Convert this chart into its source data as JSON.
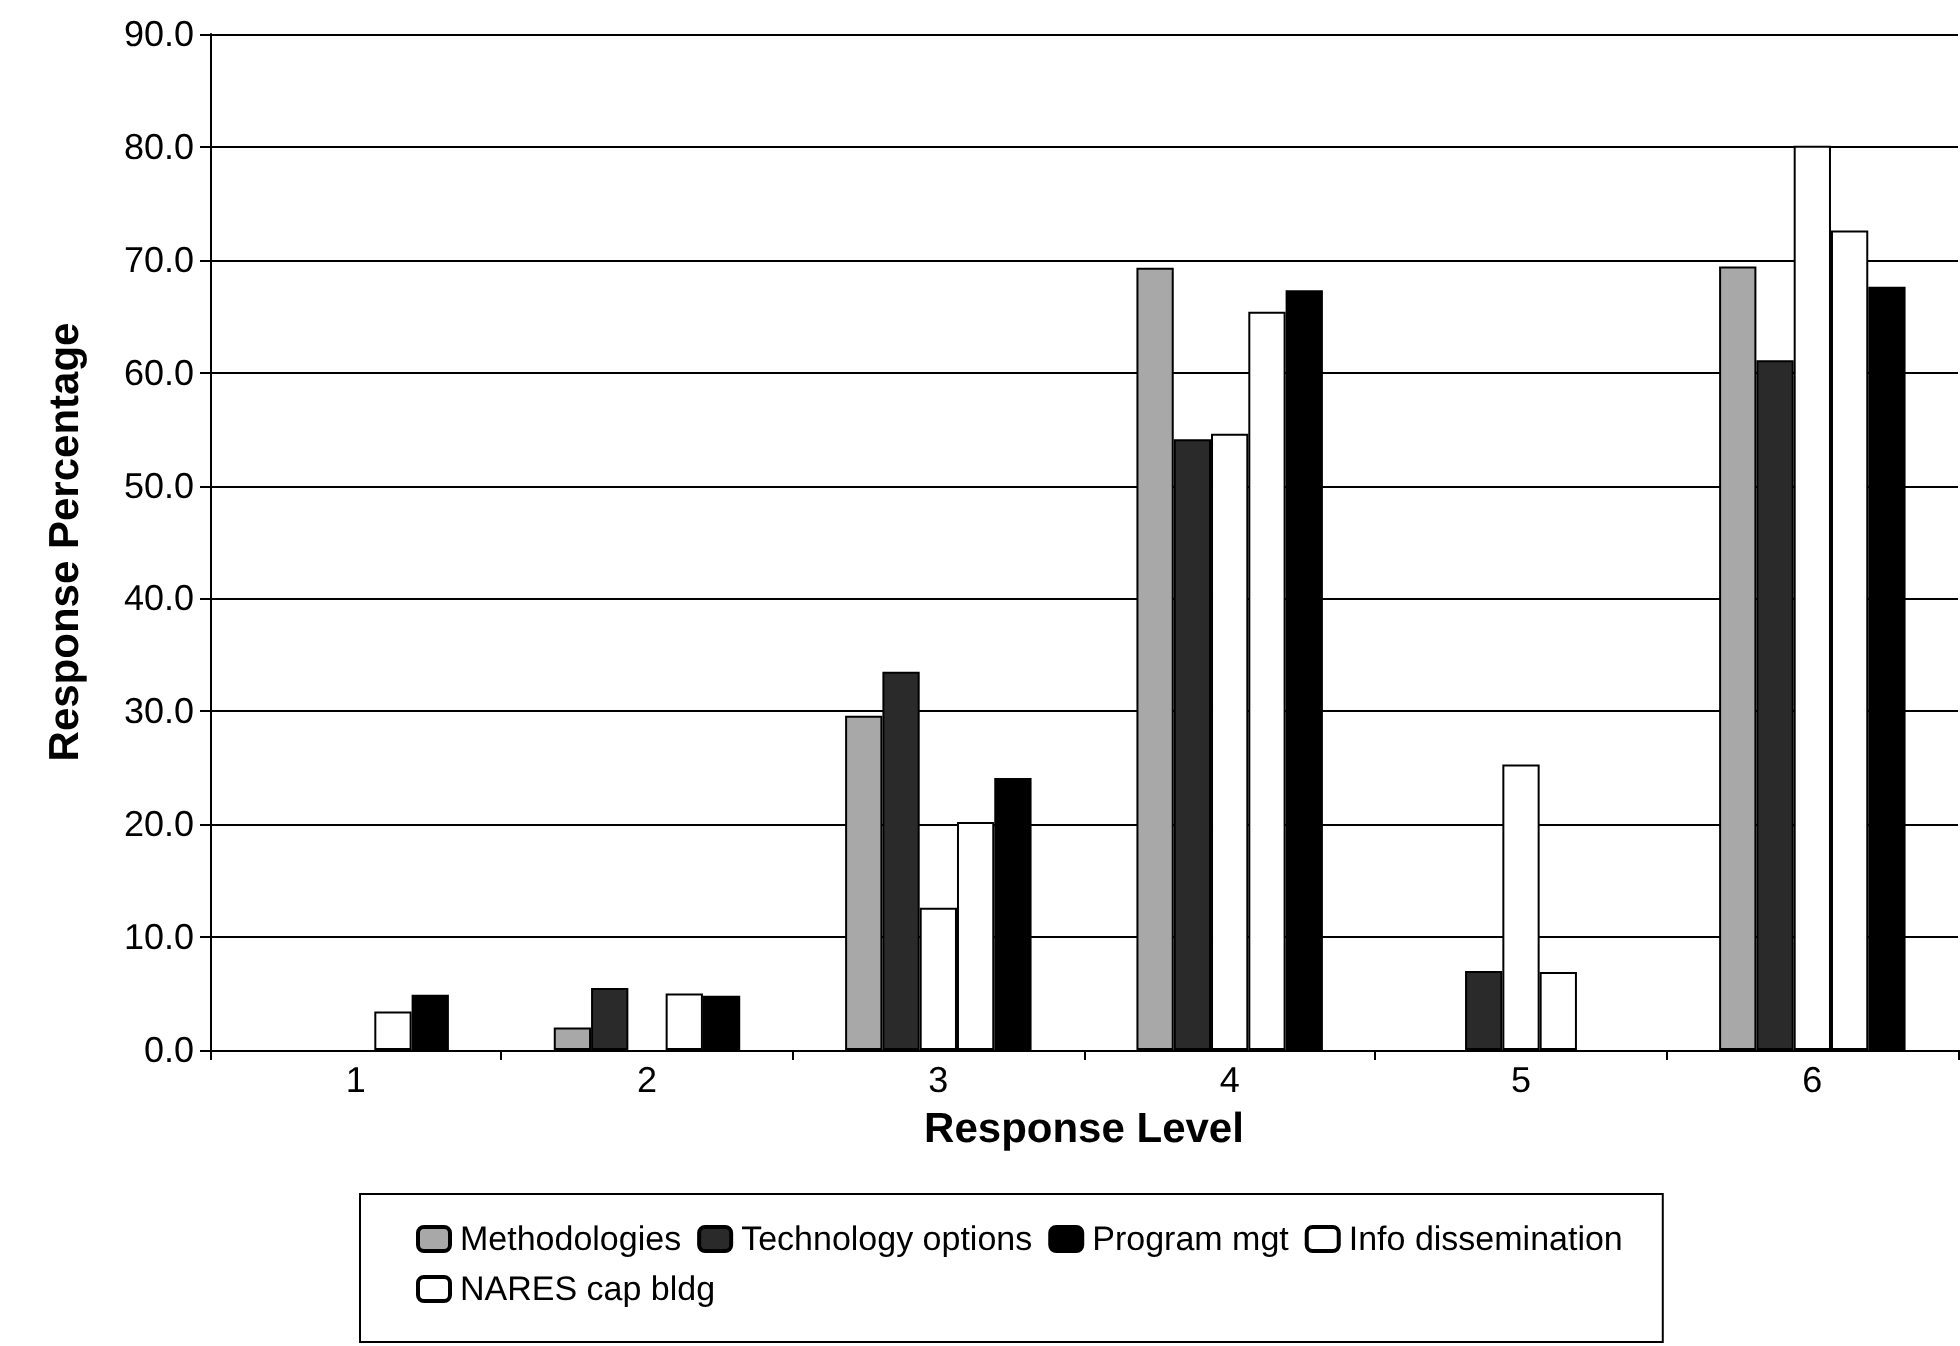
{
  "chart_data": {
    "type": "bar",
    "xlabel": "Response Level",
    "ylabel": "Response Percentage",
    "categories": [
      "1",
      "2",
      "3",
      "4",
      "5",
      "6"
    ],
    "series": [
      {
        "name": "Methodologies",
        "color": "#a8a8a8",
        "values": [
          null,
          2.0,
          29.6,
          69.3,
          null,
          69.4
        ]
      },
      {
        "name": "Technology options",
        "color": "#2a2a2a",
        "values": [
          null,
          5.5,
          33.5,
          54.1,
          7.0,
          61.1
        ]
      },
      {
        "name": "Info dissemination",
        "color": "#ffffff",
        "values": [
          null,
          null,
          12.6,
          54.6,
          25.3,
          80.1
        ]
      },
      {
        "name": "NARES cap bldg",
        "color": "#ffffff",
        "values": [
          3.4,
          5.0,
          20.2,
          65.4,
          6.9,
          72.6
        ]
      },
      {
        "name": "Program mgt",
        "color": "#000000",
        "values": [
          4.9,
          4.8,
          24.1,
          67.3,
          null,
          67.6
        ]
      }
    ],
    "ylim": [
      0,
      90
    ],
    "yticks": [
      {
        "value": 0,
        "label": "0.0"
      },
      {
        "value": 10,
        "label": "10.0"
      },
      {
        "value": 20,
        "label": "20.0"
      },
      {
        "value": 30,
        "label": "30.0"
      },
      {
        "value": 40,
        "label": "40.0"
      },
      {
        "value": 50,
        "label": "50.0"
      },
      {
        "value": 60,
        "label": "60.0"
      },
      {
        "value": 70,
        "label": "70.0"
      },
      {
        "value": 80,
        "label": "80.0"
      },
      {
        "value": 90,
        "label": "90.0"
      }
    ],
    "grid": "y",
    "legend": "bottom"
  }
}
